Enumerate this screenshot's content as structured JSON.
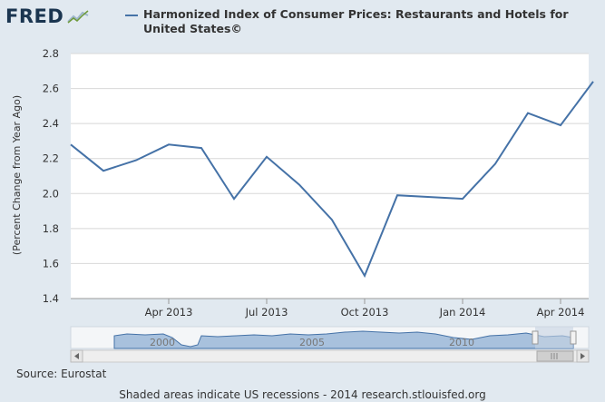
{
  "header": {
    "logo_text": "FRED",
    "logo_icon": "trend-line-icon",
    "title": "Harmonized Index of Consumer Prices: Restaurants and Hotels for United States©"
  },
  "footer": {
    "source": "Source: Eurostat",
    "credit": "Shaded areas indicate US recessions - 2014 research.stlouisfed.org"
  },
  "navigator": {
    "labels": [
      "2000",
      "2005",
      "2010"
    ]
  },
  "colors": {
    "series": "#4572a7",
    "plot_bg": "#ffffff",
    "page_bg": "#e1e9f0"
  },
  "chart_data": {
    "type": "line",
    "title": "Harmonized Index of Consumer Prices: Restaurants and Hotels for United States©",
    "xlabel": "",
    "ylabel": "(Percent Change from Year Ago)",
    "ylim": [
      1.4,
      2.8
    ],
    "yticks": [
      1.4,
      1.6,
      1.8,
      2.0,
      2.2,
      2.4,
      2.6,
      2.8
    ],
    "ytick_labels": [
      "1.4",
      "1.6",
      "1.8",
      "2.0",
      "2.2",
      "2.4",
      "2.6",
      "2.8"
    ],
    "xticks": [
      "Apr 2013",
      "Jul 2013",
      "Oct 2013",
      "Jan 2014",
      "Apr 2014"
    ],
    "grid": true,
    "series": [
      {
        "name": "Harmonized Index of Consumer Prices: Restaurants and Hotels for United States©",
        "x": [
          "2013-01",
          "2013-02",
          "2013-03",
          "2013-04",
          "2013-05",
          "2013-06",
          "2013-07",
          "2013-08",
          "2013-09",
          "2013-10",
          "2013-11",
          "2013-12",
          "2014-01",
          "2014-02",
          "2014-03",
          "2014-04",
          "2014-05"
        ],
        "values": [
          2.28,
          2.13,
          2.19,
          2.28,
          2.26,
          1.97,
          2.21,
          2.05,
          1.85,
          1.53,
          1.99,
          1.98,
          1.97,
          2.17,
          2.46,
          2.39,
          2.64
        ]
      }
    ]
  }
}
